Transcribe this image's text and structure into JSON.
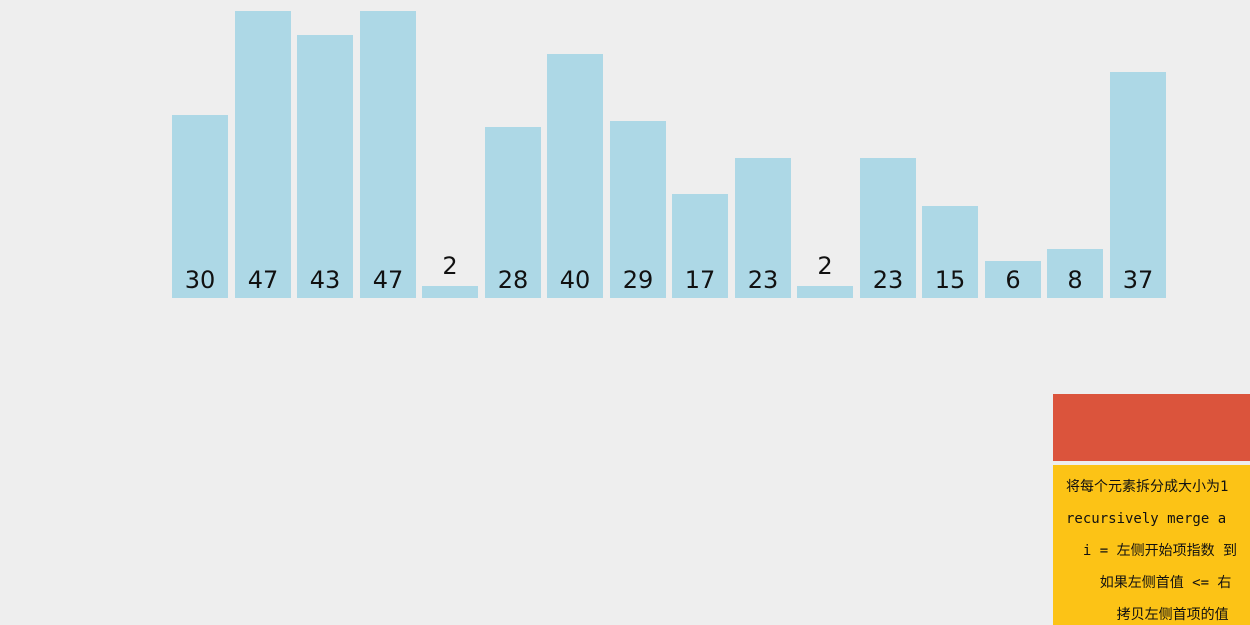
{
  "visualization": {
    "type": "bar",
    "values": [
      30,
      47,
      43,
      47,
      2,
      28,
      40,
      29,
      17,
      23,
      2,
      23,
      15,
      6,
      8,
      37
    ],
    "max_value": 47
  },
  "colors": {
    "background": "#eeeeee",
    "bar": "#add8e6",
    "status_panel": "#db543c",
    "pseudocode_panel": "#fcc316"
  },
  "pseudocode": {
    "lines": [
      "将每个元素拆分成大小为1",
      "recursively merge a",
      "  i = 左侧开始项指数 到",
      "    如果左侧首值 <= 右",
      "      拷贝左侧首项的值"
    ]
  }
}
